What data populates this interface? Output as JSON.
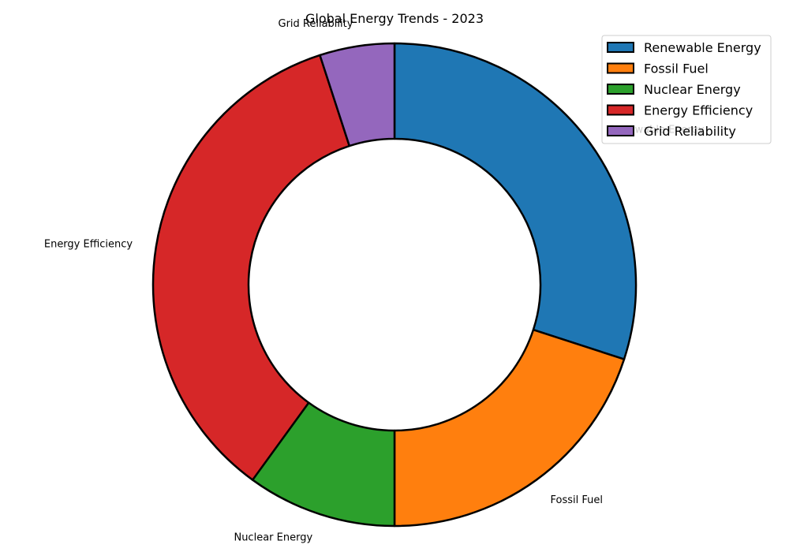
{
  "chart_data": {
    "type": "pie",
    "variant": "donut",
    "title": "Global Energy Trends - 2023",
    "categories": [
      "Renewable Energy",
      "Fossil Fuel",
      "Nuclear Energy",
      "Energy Efficiency",
      "Grid Reliability"
    ],
    "values": [
      30,
      20,
      10,
      35,
      5
    ],
    "colors": [
      "#1f77b4",
      "#ff7f0e",
      "#2ca02c",
      "#d62728",
      "#9467bd"
    ],
    "edge_color": "#000000",
    "legend": {
      "placement": "top-right",
      "entries": [
        "Renewable Energy",
        "Fossil Fuel",
        "Nuclear Energy",
        "Energy Efficiency",
        "Grid Reliability"
      ]
    }
  }
}
